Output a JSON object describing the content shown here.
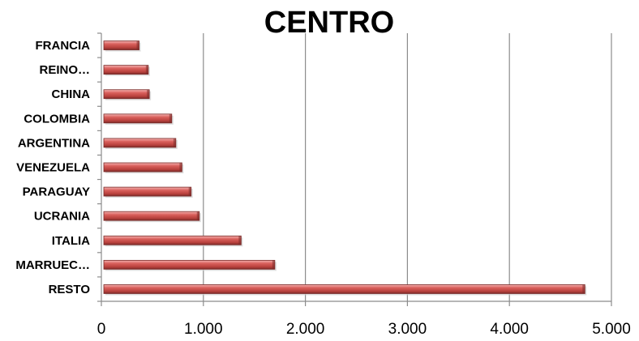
{
  "chart_data": {
    "type": "bar",
    "orientation": "horizontal",
    "title": "CENTRO",
    "categories": [
      "RESTO",
      "MARRUEC…",
      "ITALIA",
      "UCRANIA",
      "PARAGUAY",
      "VENEZUELA",
      "ARGENTINA",
      "COLOMBIA",
      "CHINA",
      "REINO…",
      "FRANCIA"
    ],
    "values": [
      4740,
      1700,
      1370,
      960,
      880,
      790,
      730,
      690,
      470,
      460,
      370
    ],
    "xlim": [
      0,
      5000
    ],
    "xticks": [
      "0",
      "1.000",
      "2.000",
      "3.000",
      "4.000",
      "5.000"
    ],
    "xtick_values": [
      0,
      1000,
      2000,
      3000,
      4000,
      5000
    ],
    "grid": "vertical",
    "bar_color": "#c0504d",
    "bar_highlight": "#f2a6a4",
    "bar_shadow": "#7a2b29"
  }
}
